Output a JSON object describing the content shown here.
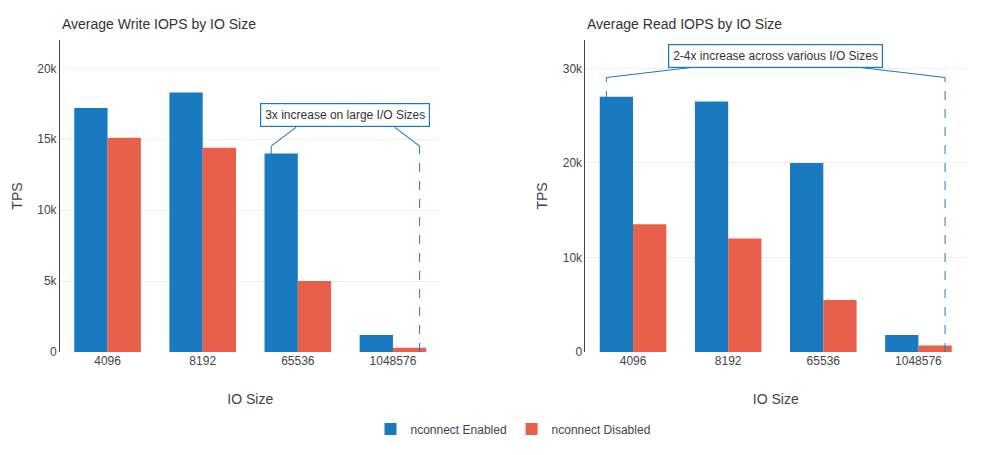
{
  "chart_data": [
    {
      "type": "bar",
      "title": "Average Write IOPS by IO Size",
      "categories": [
        "4096",
        "8192",
        "65536",
        "1048576"
      ],
      "series": [
        {
          "name": "nconnect Enabled",
          "color": "#1a7abf",
          "values": [
            17200,
            18300,
            14000,
            1200
          ]
        },
        {
          "name": "nconnect Disabled",
          "color": "#e8604a",
          "values": [
            15100,
            14400,
            5000,
            300
          ]
        }
      ],
      "xlabel": "IO Size",
      "ylabel": "TPS",
      "ylim": [
        0,
        22000
      ],
      "yticks": [
        0,
        {
          "value": 5000,
          "label": "5k"
        },
        {
          "value": 10000,
          "label": "10k"
        },
        {
          "value": 15000,
          "label": "15k"
        },
        {
          "value": 20000,
          "label": "20k"
        }
      ],
      "annotations": [
        "3x increase on large I/O Sizes"
      ],
      "grid": true,
      "legend": "bottom"
    },
    {
      "type": "bar",
      "title": "Average Read IOPS by IO Size",
      "categories": [
        "4096",
        "8192",
        "65536",
        "1048576"
      ],
      "series": [
        {
          "name": "nconnect Enabled",
          "color": "#1a7abf",
          "values": [
            27000,
            26500,
            20000,
            1800
          ]
        },
        {
          "name": "nconnect Disabled",
          "color": "#e8604a",
          "values": [
            13500,
            12000,
            5500,
            700
          ]
        }
      ],
      "xlabel": "IO Size",
      "ylabel": "TPS",
      "ylim": [
        0,
        33000
      ],
      "yticks": [
        0,
        {
          "value": 10000,
          "label": "10k"
        },
        {
          "value": 20000,
          "label": "20k"
        },
        {
          "value": 30000,
          "label": "30k"
        }
      ],
      "annotations": [
        "2-4x increase across various I/O Sizes"
      ],
      "grid": true,
      "legend": "bottom"
    }
  ]
}
